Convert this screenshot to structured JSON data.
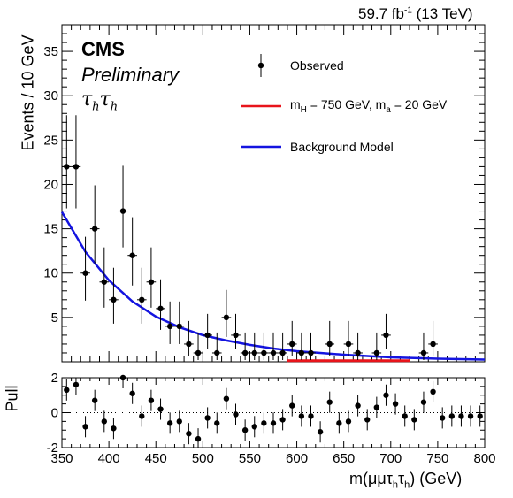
{
  "header": {
    "lumi_value": "59.7 fb",
    "lumi_exp": "-1",
    "energy": "(13 TeV)",
    "experiment": "CMS",
    "status": "Preliminary",
    "channel_tau1": "τ",
    "channel_sub1": "h",
    "channel_tau2": "τ",
    "channel_sub2": "h"
  },
  "legend": {
    "observed": "Observed",
    "signal_pre": "m",
    "signal_sub1": "H",
    "signal_mid": " = 750 GeV, m",
    "signal_sub2": "a",
    "signal_post": " = 20 GeV",
    "background": "Background Model"
  },
  "axes": {
    "ylabel_main": "Events / 10 GeV",
    "ylabel_pull": "Pull",
    "xlabel_pre": "m(μμτ",
    "xlabel_sub1": "h",
    "xlabel_mid": "τ",
    "xlabel_sub2": "h",
    "xlabel_post": ") (GeV)"
  },
  "colors": {
    "signal": "#e8141b",
    "background": "#1414e0",
    "points": "#000000"
  },
  "chart_data": {
    "type": "scatter",
    "x_range": [
      350,
      800
    ],
    "x_ticks": [
      350,
      400,
      450,
      500,
      550,
      600,
      650,
      700,
      750,
      800
    ],
    "main": {
      "y_range": [
        0,
        38
      ],
      "y_ticks": [
        5,
        10,
        15,
        20,
        25,
        30,
        35
      ],
      "observed": [
        {
          "x": 355,
          "y": 22,
          "lo": 17.3,
          "hi": 27.8
        },
        {
          "x": 365,
          "y": 22,
          "lo": 17.3,
          "hi": 27.8
        },
        {
          "x": 375,
          "y": 10,
          "lo": 6.9,
          "hi": 14.1
        },
        {
          "x": 385,
          "y": 15,
          "lo": 11.1,
          "hi": 19.9
        },
        {
          "x": 395,
          "y": 9,
          "lo": 6.1,
          "hi": 12.9
        },
        {
          "x": 405,
          "y": 7,
          "lo": 4.3,
          "hi": 10.6
        },
        {
          "x": 415,
          "y": 17,
          "lo": 12.9,
          "hi": 22.1
        },
        {
          "x": 425,
          "y": 12,
          "lo": 8.6,
          "hi": 16.3
        },
        {
          "x": 435,
          "y": 7,
          "lo": 4.3,
          "hi": 10.6
        },
        {
          "x": 445,
          "y": 9,
          "lo": 6.1,
          "hi": 12.9
        },
        {
          "x": 455,
          "y": 6,
          "lo": 3.6,
          "hi": 9.3
        },
        {
          "x": 465,
          "y": 4,
          "lo": 2.0,
          "hi": 6.8
        },
        {
          "x": 475,
          "y": 4,
          "lo": 2.0,
          "hi": 6.8
        },
        {
          "x": 485,
          "y": 2,
          "lo": 0.7,
          "hi": 4.6
        },
        {
          "x": 495,
          "y": 1,
          "lo": 0.2,
          "hi": 3.3
        },
        {
          "x": 505,
          "y": 3,
          "lo": 1.4,
          "hi": 5.4
        },
        {
          "x": 515,
          "y": 1,
          "lo": 0.2,
          "hi": 3.3
        },
        {
          "x": 525,
          "y": 5,
          "lo": 2.8,
          "hi": 8.1
        },
        {
          "x": 535,
          "y": 3,
          "lo": 1.4,
          "hi": 5.4
        },
        {
          "x": 545,
          "y": 1,
          "lo": 0.2,
          "hi": 3.3
        },
        {
          "x": 555,
          "y": 1,
          "lo": 0.2,
          "hi": 3.3
        },
        {
          "x": 565,
          "y": 1,
          "lo": 0.2,
          "hi": 3.3
        },
        {
          "x": 575,
          "y": 1,
          "lo": 0.2,
          "hi": 3.3
        },
        {
          "x": 585,
          "y": 1,
          "lo": 0.2,
          "hi": 3.3
        },
        {
          "x": 595,
          "y": 2,
          "lo": 0.7,
          "hi": 4.6
        },
        {
          "x": 605,
          "y": 1,
          "lo": 0.2,
          "hi": 3.3
        },
        {
          "x": 615,
          "y": 1,
          "lo": 0.2,
          "hi": 3.3
        },
        {
          "x": 635,
          "y": 2,
          "lo": 0.7,
          "hi": 4.6
        },
        {
          "x": 655,
          "y": 2,
          "lo": 0.7,
          "hi": 4.6
        },
        {
          "x": 665,
          "y": 1,
          "lo": 0.2,
          "hi": 3.3
        },
        {
          "x": 685,
          "y": 1,
          "lo": 0.2,
          "hi": 3.3
        },
        {
          "x": 695,
          "y": 3,
          "lo": 1.4,
          "hi": 5.4
        },
        {
          "x": 735,
          "y": 1,
          "lo": 0.2,
          "hi": 3.3
        },
        {
          "x": 745,
          "y": 2,
          "lo": 0.7,
          "hi": 4.6
        }
      ],
      "background_model": {
        "x": [
          350,
          375,
          400,
          425,
          450,
          475,
          500,
          525,
          550,
          575,
          600,
          650,
          700,
          750,
          800
        ],
        "y": [
          16.9,
          12.4,
          9.2,
          6.8,
          5.1,
          3.9,
          3.0,
          2.4,
          1.9,
          1.5,
          1.2,
          0.8,
          0.5,
          0.35,
          0.25
        ]
      },
      "signal": {
        "x": [
          590,
          720
        ],
        "y": [
          0.03,
          0.03
        ]
      }
    },
    "pull": {
      "y_range": [
        -2,
        2
      ],
      "y_ticks": [
        -2,
        0,
        2
      ],
      "points": [
        {
          "x": 355,
          "y": 1.3
        },
        {
          "x": 365,
          "y": 1.6
        },
        {
          "x": 375,
          "y": -0.8
        },
        {
          "x": 385,
          "y": 0.7
        },
        {
          "x": 395,
          "y": -0.5
        },
        {
          "x": 405,
          "y": -0.9
        },
        {
          "x": 415,
          "y": 2.0
        },
        {
          "x": 425,
          "y": 1.1
        },
        {
          "x": 435,
          "y": -0.2
        },
        {
          "x": 445,
          "y": 0.7
        },
        {
          "x": 455,
          "y": 0.2
        },
        {
          "x": 465,
          "y": -0.6
        },
        {
          "x": 475,
          "y": -0.5
        },
        {
          "x": 485,
          "y": -1.2
        },
        {
          "x": 495,
          "y": -1.5
        },
        {
          "x": 505,
          "y": -0.3
        },
        {
          "x": 515,
          "y": -0.6
        },
        {
          "x": 525,
          "y": 0.8
        },
        {
          "x": 535,
          "y": -0.1
        },
        {
          "x": 545,
          "y": -1.0
        },
        {
          "x": 555,
          "y": -0.8
        },
        {
          "x": 565,
          "y": -0.6
        },
        {
          "x": 575,
          "y": -0.6
        },
        {
          "x": 585,
          "y": -0.4
        },
        {
          "x": 595,
          "y": 0.4
        },
        {
          "x": 605,
          "y": -0.2
        },
        {
          "x": 615,
          "y": -0.2
        },
        {
          "x": 625,
          "y": -1.1
        },
        {
          "x": 635,
          "y": 0.6
        },
        {
          "x": 645,
          "y": -0.6
        },
        {
          "x": 655,
          "y": -0.5
        },
        {
          "x": 665,
          "y": 0.4
        },
        {
          "x": 675,
          "y": -0.4
        },
        {
          "x": 685,
          "y": 0.3
        },
        {
          "x": 695,
          "y": 1.0
        },
        {
          "x": 705,
          "y": 0.5
        },
        {
          "x": 715,
          "y": -0.2
        },
        {
          "x": 725,
          "y": -0.4
        },
        {
          "x": 735,
          "y": 0.6
        },
        {
          "x": 745,
          "y": 1.2
        },
        {
          "x": 755,
          "y": -0.3
        },
        {
          "x": 765,
          "y": -0.2
        },
        {
          "x": 775,
          "y": -0.2
        },
        {
          "x": 785,
          "y": -0.2
        },
        {
          "x": 795,
          "y": -0.2
        }
      ]
    }
  }
}
